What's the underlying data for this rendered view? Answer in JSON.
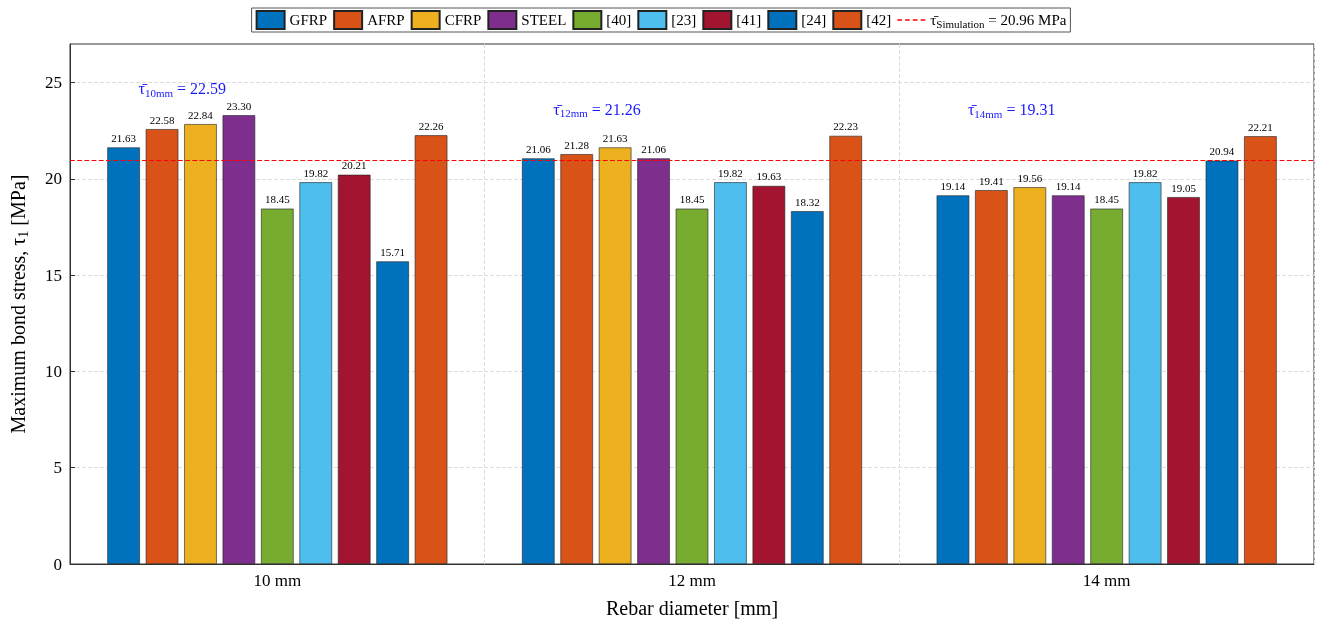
{
  "chart_data": {
    "type": "bar",
    "xlabel": "Rebar diameter [mm]",
    "ylabel": "Maximum bond stress, τ$_{1}$ [MPa]",
    "categories": [
      "10 mm",
      "12 mm",
      "14 mm"
    ],
    "series": [
      {
        "name": "GFRP",
        "color": "#0072bd",
        "values": [
          21.63,
          21.06,
          19.14
        ],
        "value_labels": [
          "21.63",
          "21.06",
          "19.14"
        ]
      },
      {
        "name": "AFRP",
        "color": "#d95319",
        "values": [
          22.58,
          21.28,
          19.41
        ],
        "value_labels": [
          "22.58",
          "21.28",
          "19.41"
        ]
      },
      {
        "name": "CFRP",
        "color": "#edb120",
        "values": [
          22.84,
          21.63,
          19.56
        ],
        "value_labels": [
          "22.84",
          "21.63",
          "19.56"
        ]
      },
      {
        "name": "STEEL",
        "color": "#7e2f8e",
        "values": [
          23.3,
          21.06,
          19.14
        ],
        "value_labels": [
          "23.30",
          "21.06",
          "19.14"
        ]
      },
      {
        "name": "[40]",
        "color": "#77ac30",
        "values": [
          18.45,
          18.45,
          18.45
        ],
        "value_labels": [
          "18.45",
          "18.45",
          "18.45"
        ]
      },
      {
        "name": "[23]",
        "color": "#4dbeee",
        "values": [
          19.82,
          19.82,
          19.82
        ],
        "value_labels": [
          "19.82",
          "19.82",
          "19.82"
        ]
      },
      {
        "name": "[41]",
        "color": "#a2142f",
        "values": [
          20.21,
          19.63,
          19.05
        ],
        "value_labels": [
          "20.21",
          "19.63",
          "19.05"
        ]
      },
      {
        "name": "[24]",
        "color": "#0072bd",
        "values": [
          15.71,
          18.32,
          20.94
        ],
        "value_labels": [
          "15.71",
          "18.32",
          "20.94"
        ]
      },
      {
        "name": "[42]",
        "color": "#d95319",
        "values": [
          22.26,
          22.23,
          22.21
        ],
        "value_labels": [
          "22.26",
          "22.23",
          "22.21"
        ]
      }
    ],
    "ylim": [
      0,
      27
    ],
    "yticks": [
      0,
      5,
      10,
      15,
      20,
      25
    ],
    "grid": true,
    "legend": "top",
    "ref_lines": [
      {
        "axis": "y",
        "value": 20.96,
        "label": "τ̄$_{Simulation}$ = 20.96 MPa",
        "color": "#ff0000",
        "line_style": "dashed"
      }
    ],
    "annotations": [
      "τ̄$_{10mm}$ = 22.59",
      "τ̄$_{12mm}$ = 21.26",
      "τ̄$_{14mm}$ = 19.31"
    ]
  }
}
